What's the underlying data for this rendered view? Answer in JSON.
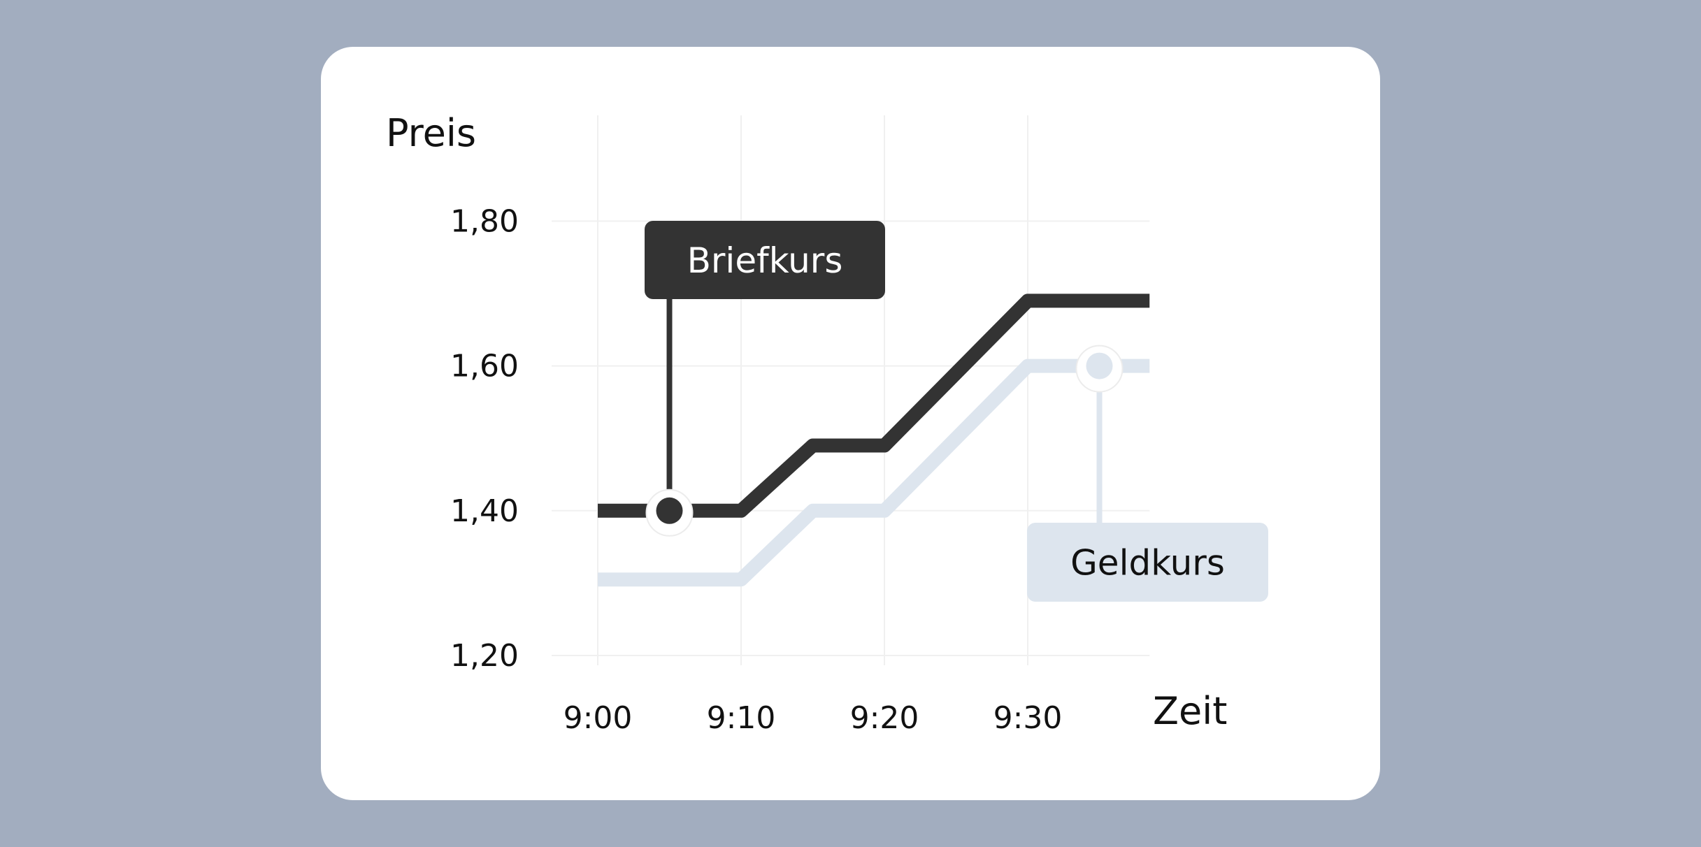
{
  "chart_data": {
    "type": "line",
    "xlabel": "Zeit",
    "ylabel": "Preis",
    "x": [
      "9:00",
      "9:10",
      "9:20",
      "9:30"
    ],
    "y_ticks": [
      "1,20",
      "1,40",
      "1,60",
      "1,80"
    ],
    "ylim": [
      1.2,
      1.8
    ],
    "xlim_minutes": [
      0,
      38.5
    ],
    "grid": true,
    "series": [
      {
        "name": "Briefkurs",
        "color": "#333333",
        "points": [
          [
            0,
            1.4
          ],
          [
            10,
            1.4
          ],
          [
            15,
            1.49
          ],
          [
            20,
            1.49
          ],
          [
            30,
            1.69
          ],
          [
            38.5,
            1.69
          ]
        ],
        "marker_at": [
          5,
          1.4
        ]
      },
      {
        "name": "Geldkurs",
        "color": "#dde5ee",
        "points": [
          [
            0,
            1.305
          ],
          [
            10,
            1.305
          ],
          [
            15,
            1.4
          ],
          [
            20,
            1.4
          ],
          [
            30,
            1.6
          ],
          [
            38.5,
            1.6
          ]
        ],
        "marker_at": [
          35,
          1.6
        ]
      }
    ]
  },
  "colors": {
    "background": "#a2adbf",
    "card": "#ffffff",
    "grid": "#f0f0f0",
    "briefkurs": "#333333",
    "geldkurs": "#dde5ee"
  }
}
